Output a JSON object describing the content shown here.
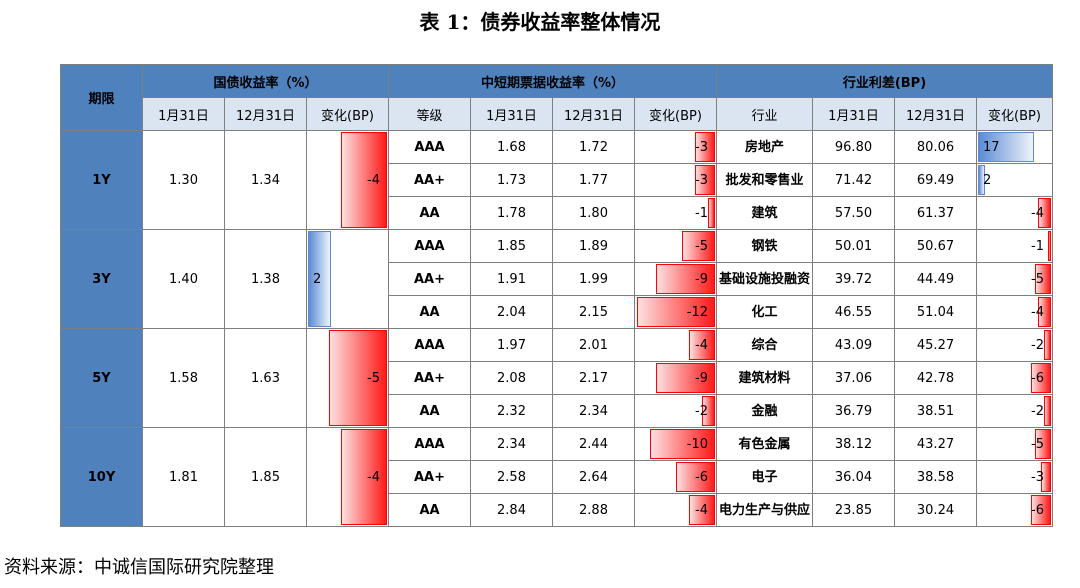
{
  "title": "表 1：债券收益率整体情况",
  "source": "资料来源：中诚信国际研究院整理",
  "header": {
    "term": "期限",
    "gov_group": "国债收益率（%）",
    "mtn_group": "中短期票据收益率（%）",
    "spread_group": "行业利差(BP)",
    "jan31": "1月31日",
    "dec31": "12月31日",
    "change": "变化(BP)",
    "grade": "等级",
    "industry": "行业"
  },
  "rows": [
    {
      "term": "1Y",
      "gov_jan": "1.30",
      "gov_dec": "1.34",
      "gov_chg": "-4",
      "gov_chg_value": -4,
      "mtn": [
        {
          "grade": "AAA",
          "jan": "1.68",
          "dec": "1.72",
          "chg": "-3",
          "chg_value": -3
        },
        {
          "grade": "AA+",
          "jan": "1.73",
          "dec": "1.77",
          "chg": "-3",
          "chg_value": -3
        },
        {
          "grade": "AA",
          "jan": "1.78",
          "dec": "1.80",
          "chg": "-1",
          "chg_value": -1
        }
      ]
    },
    {
      "term": "3Y",
      "gov_jan": "1.40",
      "gov_dec": "1.38",
      "gov_chg": "2",
      "gov_chg_value": 2,
      "mtn": [
        {
          "grade": "AAA",
          "jan": "1.85",
          "dec": "1.89",
          "chg": "-5",
          "chg_value": -5
        },
        {
          "grade": "AA+",
          "jan": "1.91",
          "dec": "1.99",
          "chg": "-9",
          "chg_value": -9
        },
        {
          "grade": "AA",
          "jan": "2.04",
          "dec": "2.15",
          "chg": "-12",
          "chg_value": -12
        }
      ]
    },
    {
      "term": "5Y",
      "gov_jan": "1.58",
      "gov_dec": "1.63",
      "gov_chg": "-5",
      "gov_chg_value": -5,
      "mtn": [
        {
          "grade": "AAA",
          "jan": "1.97",
          "dec": "2.01",
          "chg": "-4",
          "chg_value": -4
        },
        {
          "grade": "AA+",
          "jan": "2.08",
          "dec": "2.17",
          "chg": "-9",
          "chg_value": -9
        },
        {
          "grade": "AA",
          "jan": "2.32",
          "dec": "2.34",
          "chg": "-2",
          "chg_value": -2
        }
      ]
    },
    {
      "term": "10Y",
      "gov_jan": "1.81",
      "gov_dec": "1.85",
      "gov_chg": "-4",
      "gov_chg_value": -4,
      "mtn": [
        {
          "grade": "AAA",
          "jan": "2.34",
          "dec": "2.44",
          "chg": "-10",
          "chg_value": -10
        },
        {
          "grade": "AA+",
          "jan": "2.58",
          "dec": "2.64",
          "chg": "-6",
          "chg_value": -6
        },
        {
          "grade": "AA",
          "jan": "2.84",
          "dec": "2.88",
          "chg": "-4",
          "chg_value": -4
        }
      ]
    }
  ],
  "spreads": [
    {
      "industry": "房地产",
      "jan": "96.80",
      "dec": "80.06",
      "chg": "17",
      "chg_value": 17
    },
    {
      "industry": "批发和零售业",
      "jan": "71.42",
      "dec": "69.49",
      "chg": "2",
      "chg_value": 2
    },
    {
      "industry": "建筑",
      "jan": "57.50",
      "dec": "61.37",
      "chg": "-4",
      "chg_value": -4
    },
    {
      "industry": "钢铁",
      "jan": "50.01",
      "dec": "50.67",
      "chg": "-1",
      "chg_value": -1
    },
    {
      "industry": "基础设施投融资",
      "jan": "39.72",
      "dec": "44.49",
      "chg": "-5",
      "chg_value": -5
    },
    {
      "industry": "化工",
      "jan": "46.55",
      "dec": "51.04",
      "chg": "-4",
      "chg_value": -4
    },
    {
      "industry": "综合",
      "jan": "43.09",
      "dec": "45.27",
      "chg": "-2",
      "chg_value": -2
    },
    {
      "industry": "建筑材料",
      "jan": "37.06",
      "dec": "42.78",
      "chg": "-6",
      "chg_value": -6
    },
    {
      "industry": "金融",
      "jan": "36.79",
      "dec": "38.51",
      "chg": "-2",
      "chg_value": -2
    },
    {
      "industry": "有色金属",
      "jan": "38.12",
      "dec": "43.27",
      "chg": "-5",
      "chg_value": -5
    },
    {
      "industry": "电子",
      "jan": "36.04",
      "dec": "38.58",
      "chg": "-3",
      "chg_value": -3
    },
    {
      "industry": "电力生产与供应",
      "jan": "23.85",
      "dec": "30.24",
      "chg": "-6",
      "chg_value": -6
    }
  ],
  "colors": {
    "header_blue": "#4f81bd",
    "subheader": "#dbe5f1",
    "neg_bar": "#ff0000",
    "pos_bar": "#5b8bd5"
  }
}
